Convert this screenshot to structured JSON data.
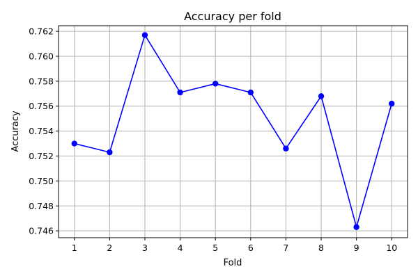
{
  "chart_data": {
    "type": "line",
    "title": "Accuracy per fold",
    "xlabel": "Fold",
    "ylabel": "Accuracy",
    "x": [
      1,
      2,
      3,
      4,
      5,
      6,
      7,
      8,
      9,
      10
    ],
    "series": [
      {
        "values": [
          0.753,
          0.7523,
          0.7617,
          0.7571,
          0.7578,
          0.7571,
          0.7526,
          0.7568,
          0.7463,
          0.7562
        ],
        "color": "#0000ff",
        "marker": "circle"
      }
    ],
    "xlim": [
      0.55,
      10.45
    ],
    "ylim": [
      0.74545,
      0.76245
    ],
    "xticks": [
      "1",
      "2",
      "3",
      "4",
      "5",
      "6",
      "7",
      "8",
      "9",
      "10"
    ],
    "yticks": [
      "0.746",
      "0.748",
      "0.750",
      "0.752",
      "0.754",
      "0.756",
      "0.758",
      "0.760",
      "0.762"
    ],
    "grid": true,
    "legend": "none"
  }
}
